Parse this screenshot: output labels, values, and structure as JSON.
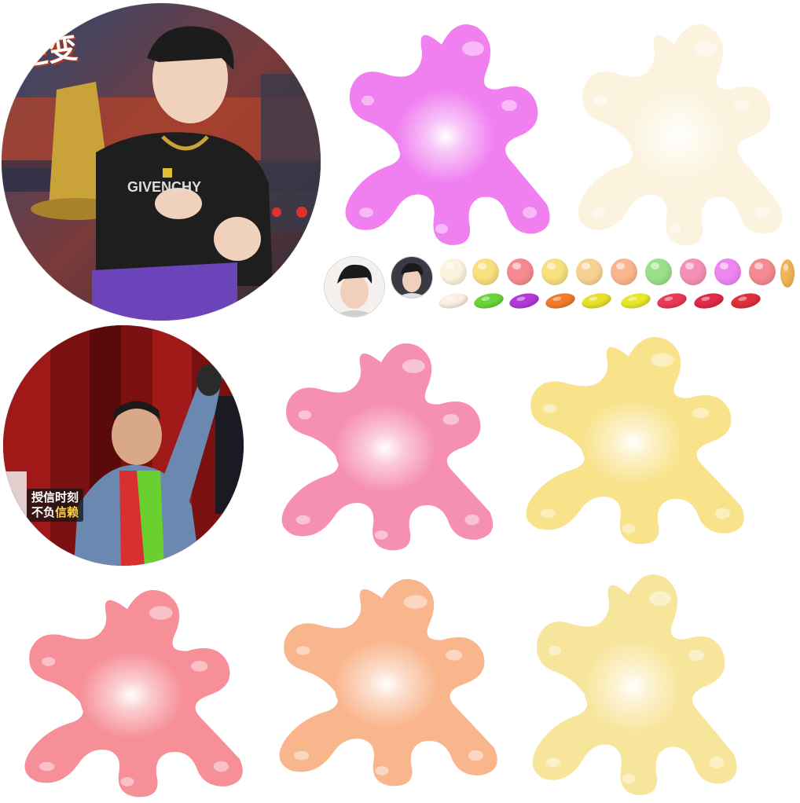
{
  "avatars": {
    "top": {
      "logo_text": "逆变"
    },
    "bottom": {
      "caption_line1": "授信时刻",
      "caption_line2_a": "不负",
      "caption_line2_b": "信赖"
    }
  },
  "colors": {
    "magenta": "#f080f0",
    "cream": "#fbf3de",
    "pink": "#f690b2",
    "yellow": "#f8e28a",
    "coral": "#f68f97",
    "peach": "#f9b68d",
    "lemon": "#f8e59c"
  },
  "palette_dots": [
    "#fbf3de",
    "#f8e07e",
    "#f68a92",
    "#f8e07e",
    "#f9d293",
    "#f9b68d",
    "#9be08a",
    "#f68fb5",
    "#ef86ef",
    "#f68a92",
    "#f3b458"
  ],
  "palette_beans": [
    "#fbf0e0",
    "#6ad43a",
    "#b23ad8",
    "#f47a2c",
    "#e8e02a",
    "#e8e82a",
    "#ea3a5a",
    "#e02a4a",
    "#e0303a"
  ]
}
